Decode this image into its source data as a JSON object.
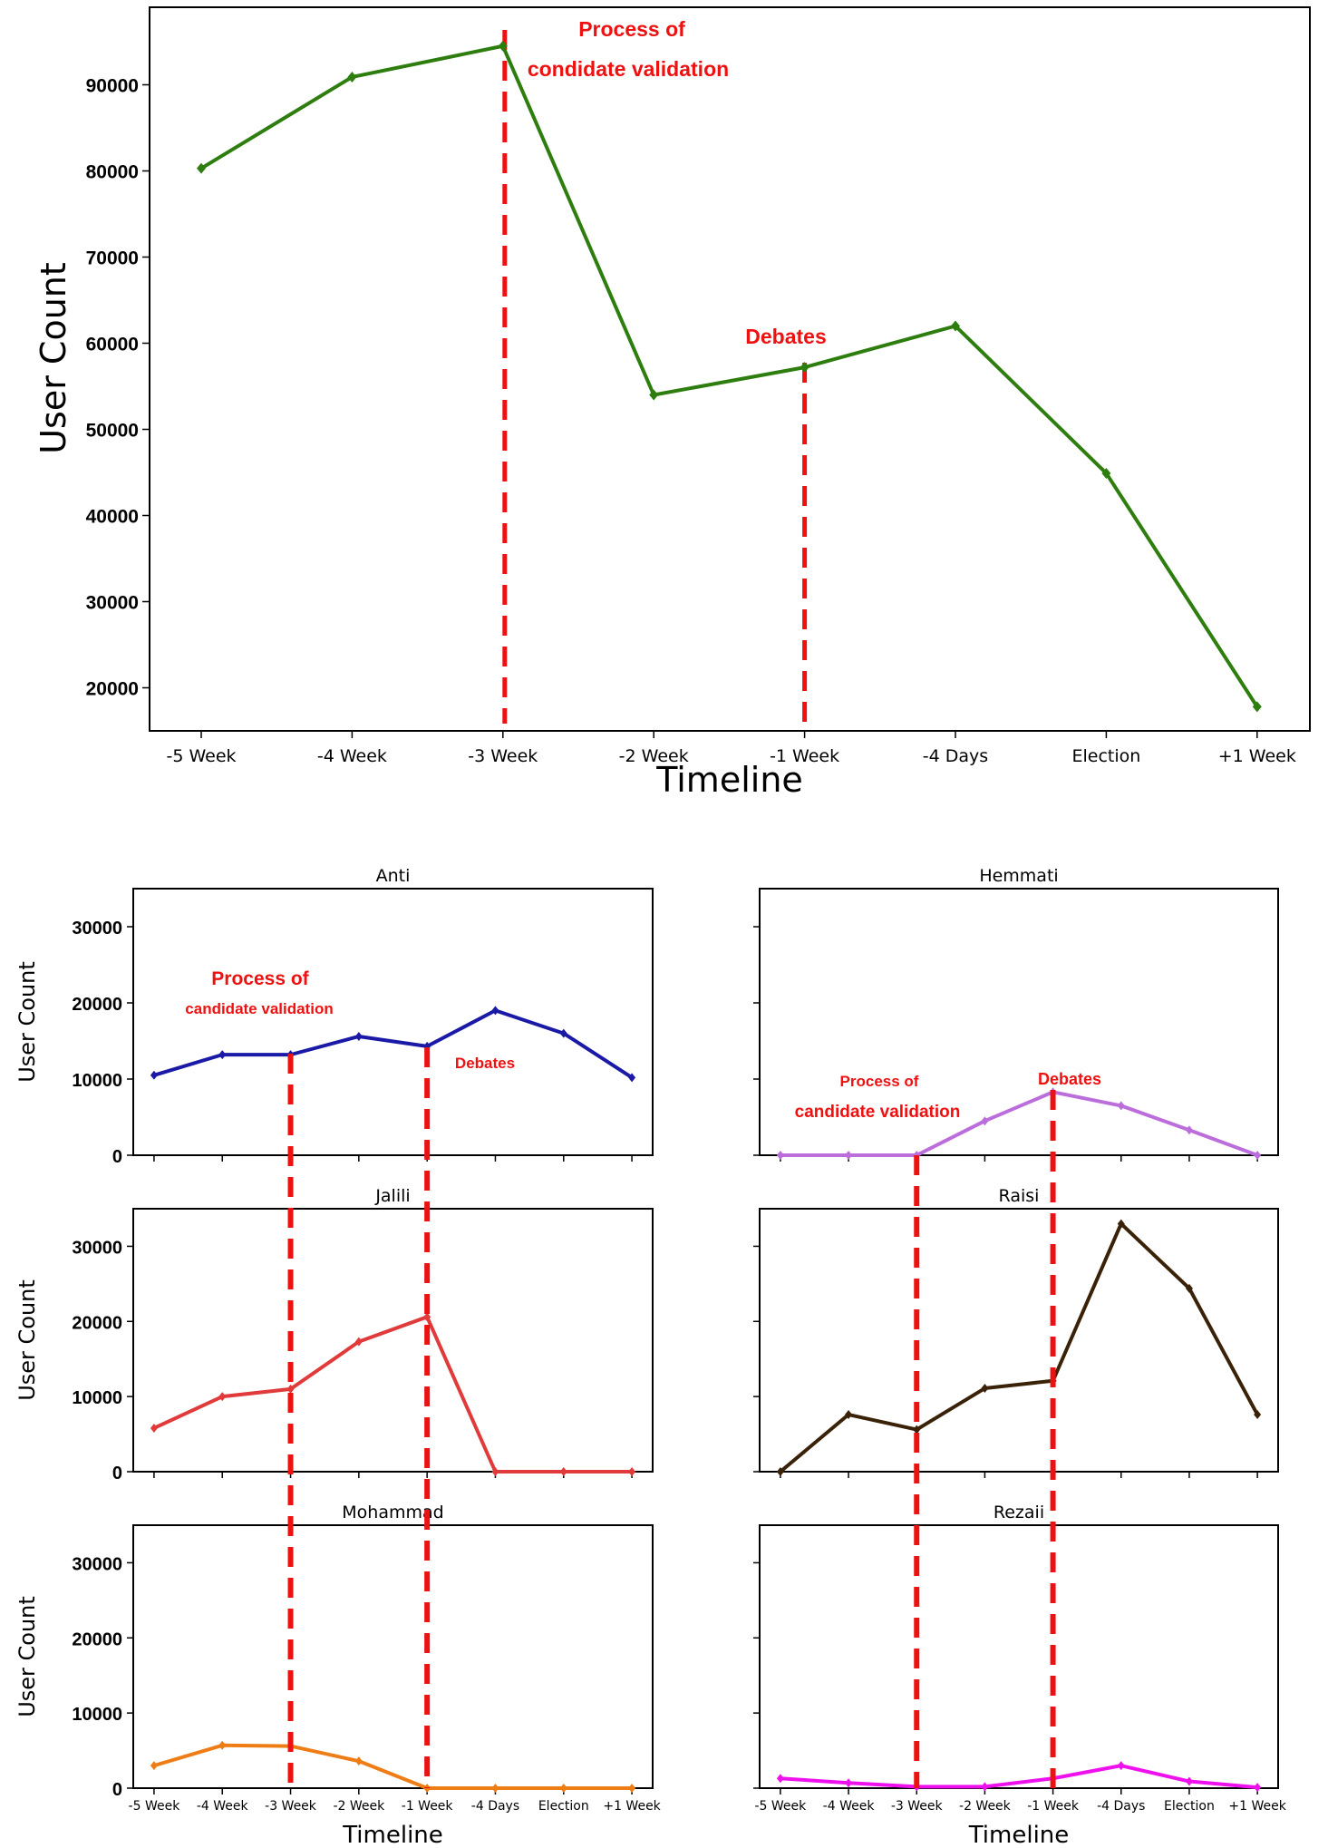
{
  "categories": [
    "-5 Week",
    "-4 Week",
    "-3 Week",
    "-2 Week",
    "-1 Week",
    "-4 Days",
    "Election",
    "+1 Week"
  ],
  "annotations": {
    "process_line1": "Process of",
    "process_line2": "condidate validation",
    "process_line2_small": "candidate validation",
    "debates": "Debates"
  },
  "colors": {
    "event_line": "#ee1111",
    "total": "#2e7d0f",
    "anti": "#1a1aa6",
    "hemmati": "#bb6ddb",
    "jalili": "#e03a3a",
    "raisi": "#3a2208",
    "mohammad": "#ef7d15",
    "rezaii": "#ee11ee"
  },
  "chart_data": [
    {
      "type": "line",
      "title": "",
      "xlabel": "Timeline",
      "ylabel": "User Count",
      "categories": [
        "-5 Week",
        "-4 Week",
        "-3 Week",
        "-2 Week",
        "-1 Week",
        "-4 Days",
        "Election",
        "+1 Week"
      ],
      "values": [
        80300,
        90900,
        94500,
        54000,
        57200,
        62000,
        44900,
        17800
      ],
      "yticks": [
        20000,
        30000,
        40000,
        50000,
        60000,
        70000,
        80000,
        90000
      ],
      "ylim": [
        15000,
        99000
      ],
      "events": [
        "-3 Week",
        "-1 Week"
      ]
    },
    {
      "type": "line",
      "title": "Anti",
      "ylabel": "User Count",
      "xlabel": "",
      "categories": [
        "-5 Week",
        "-4 Week",
        "-3 Week",
        "-2 Week",
        "-1 Week",
        "-4 Days",
        "Election",
        "+1 Week"
      ],
      "values": [
        10500,
        13200,
        13200,
        15600,
        14300,
        19000,
        16000,
        10200
      ],
      "yticks": [
        0,
        10000,
        20000,
        30000
      ],
      "ylim": [
        0,
        35000
      ]
    },
    {
      "type": "line",
      "title": "Hemmati",
      "ylabel": "",
      "xlabel": "",
      "categories": [
        "-5 Week",
        "-4 Week",
        "-3 Week",
        "-2 Week",
        "-1 Week",
        "-4 Days",
        "Election",
        "+1 Week"
      ],
      "values": [
        0,
        0,
        0,
        4500,
        8300,
        6500,
        3300,
        0
      ],
      "yticks": [
        0,
        10000,
        20000,
        30000
      ],
      "ylim": [
        0,
        35000
      ]
    },
    {
      "type": "line",
      "title": "Jalili",
      "ylabel": "User Count",
      "xlabel": "",
      "categories": [
        "-5 Week",
        "-4 Week",
        "-3 Week",
        "-2 Week",
        "-1 Week",
        "-4 Days",
        "Election",
        "+1 Week"
      ],
      "values": [
        5800,
        10000,
        11000,
        17300,
        20600,
        0,
        0,
        0
      ],
      "yticks": [
        0,
        10000,
        20000,
        30000
      ],
      "ylim": [
        0,
        35000
      ]
    },
    {
      "type": "line",
      "title": "Raisi",
      "ylabel": "",
      "xlabel": "",
      "categories": [
        "-5 Week",
        "-4 Week",
        "-3 Week",
        "-2 Week",
        "-1 Week",
        "-4 Days",
        "Election",
        "+1 Week"
      ],
      "values": [
        0,
        7600,
        5600,
        11100,
        12100,
        33000,
        24400,
        7600
      ],
      "yticks": [
        0,
        10000,
        20000,
        30000
      ],
      "ylim": [
        0,
        35000
      ]
    },
    {
      "type": "line",
      "title": "Mohammad",
      "ylabel": "User Count",
      "xlabel": "Timeline",
      "categories": [
        "-5 Week",
        "-4 Week",
        "-3 Week",
        "-2 Week",
        "-1 Week",
        "-4 Days",
        "Election",
        "+1 Week"
      ],
      "values": [
        3000,
        5700,
        5600,
        3600,
        0,
        0,
        0,
        0
      ],
      "yticks": [
        0,
        10000,
        20000,
        30000
      ],
      "ylim": [
        0,
        35000
      ]
    },
    {
      "type": "line",
      "title": "Rezaii",
      "ylabel": "",
      "xlabel": "Timeline",
      "categories": [
        "-5 Week",
        "-4 Week",
        "-3 Week",
        "-2 Week",
        "-1 Week",
        "-4 Days",
        "Election",
        "+1 Week"
      ],
      "values": [
        1300,
        700,
        200,
        200,
        1300,
        3000,
        900,
        100
      ],
      "yticks": [
        0,
        10000,
        20000,
        30000
      ],
      "ylim": [
        0,
        35000
      ]
    }
  ]
}
